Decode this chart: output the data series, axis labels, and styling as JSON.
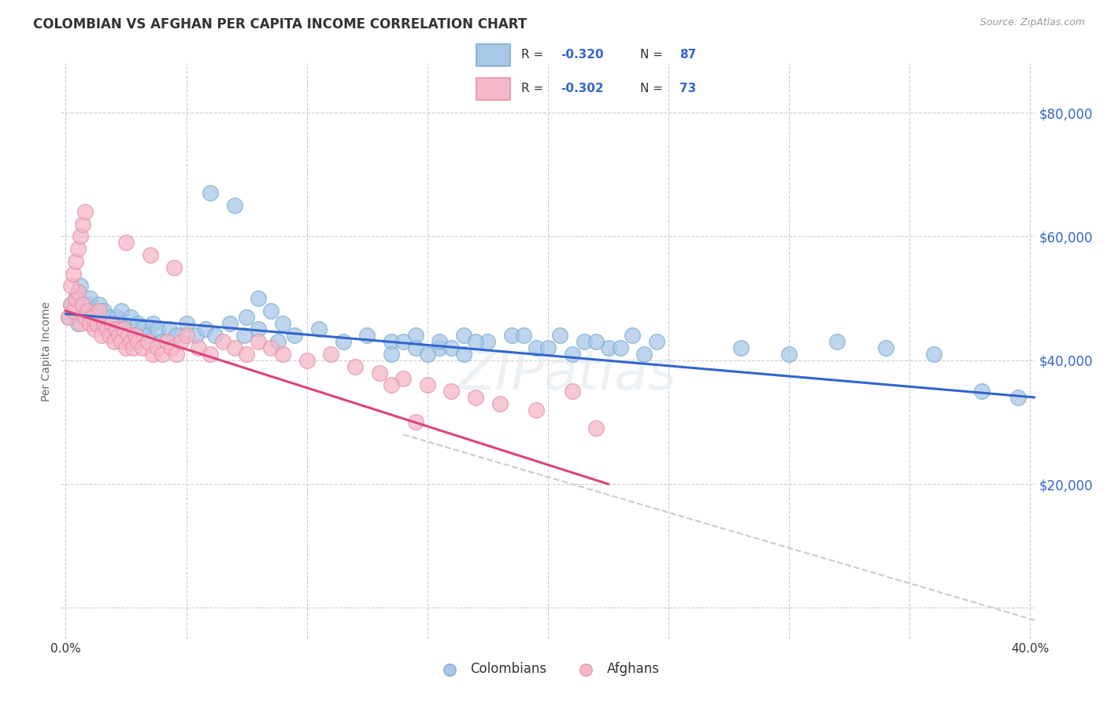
{
  "title": "COLOMBIAN VS AFGHAN PER CAPITA INCOME CORRELATION CHART",
  "source": "Source: ZipAtlas.com",
  "ylabel": "Per Capita Income",
  "watermark": "ZIPatlas",
  "x_ticks": [
    0.0,
    0.05,
    0.1,
    0.15,
    0.2,
    0.25,
    0.3,
    0.35,
    0.4
  ],
  "y_ticks": [
    0,
    20000,
    40000,
    60000,
    80000
  ],
  "xlim": [
    -0.002,
    0.402
  ],
  "ylim": [
    -5000,
    88000
  ],
  "blue_scatter_color": "#a8c8e8",
  "blue_edge_color": "#7aafd4",
  "pink_scatter_color": "#f5b8c8",
  "pink_edge_color": "#e890a8",
  "line_blue": "#3366cc",
  "line_pink": "#dd4477",
  "line_dashed": "#cccccc",
  "background": "#ffffff",
  "grid_color": "#cccccc",
  "title_color": "#333333",
  "right_label_color": "#3366cc",
  "colombian_scatter_x": [
    0.001,
    0.002,
    0.003,
    0.004,
    0.005,
    0.005,
    0.006,
    0.007,
    0.008,
    0.009,
    0.01,
    0.011,
    0.012,
    0.013,
    0.014,
    0.015,
    0.016,
    0.017,
    0.018,
    0.019,
    0.02,
    0.021,
    0.022,
    0.023,
    0.025,
    0.027,
    0.028,
    0.03,
    0.032,
    0.034,
    0.036,
    0.038,
    0.04,
    0.043,
    0.046,
    0.05,
    0.054,
    0.058,
    0.062,
    0.068,
    0.074,
    0.08,
    0.088,
    0.095,
    0.105,
    0.115,
    0.125,
    0.135,
    0.145,
    0.155,
    0.165,
    0.175,
    0.185,
    0.195,
    0.205,
    0.215,
    0.225,
    0.235,
    0.245,
    0.135,
    0.14,
    0.145,
    0.15,
    0.155,
    0.16,
    0.165,
    0.17,
    0.2,
    0.21,
    0.22,
    0.23,
    0.24,
    0.28,
    0.3,
    0.32,
    0.34,
    0.36,
    0.38,
    0.395,
    0.19,
    0.06,
    0.07,
    0.075,
    0.08,
    0.085,
    0.09
  ],
  "colombian_scatter_y": [
    47000,
    49000,
    48000,
    50000,
    51000,
    46000,
    52000,
    48000,
    47000,
    49000,
    50000,
    46000,
    48000,
    47000,
    49000,
    46000,
    48000,
    45000,
    47000,
    46000,
    45000,
    47000,
    46000,
    48000,
    45000,
    47000,
    44000,
    46000,
    45000,
    44000,
    46000,
    45000,
    43000,
    45000,
    44000,
    46000,
    44000,
    45000,
    44000,
    46000,
    44000,
    45000,
    43000,
    44000,
    45000,
    43000,
    44000,
    43000,
    44000,
    42000,
    44000,
    43000,
    44000,
    42000,
    44000,
    43000,
    42000,
    44000,
    43000,
    41000,
    43000,
    42000,
    41000,
    43000,
    42000,
    41000,
    43000,
    42000,
    41000,
    43000,
    42000,
    41000,
    42000,
    41000,
    43000,
    42000,
    41000,
    35000,
    34000,
    44000,
    67000,
    65000,
    47000,
    50000,
    48000,
    46000
  ],
  "afghan_scatter_x": [
    0.001,
    0.002,
    0.003,
    0.004,
    0.005,
    0.006,
    0.007,
    0.008,
    0.009,
    0.01,
    0.011,
    0.012,
    0.013,
    0.014,
    0.015,
    0.016,
    0.017,
    0.018,
    0.019,
    0.02,
    0.021,
    0.022,
    0.023,
    0.024,
    0.025,
    0.026,
    0.027,
    0.028,
    0.029,
    0.03,
    0.032,
    0.034,
    0.036,
    0.038,
    0.04,
    0.042,
    0.044,
    0.046,
    0.048,
    0.05,
    0.055,
    0.06,
    0.065,
    0.07,
    0.075,
    0.08,
    0.085,
    0.09,
    0.1,
    0.11,
    0.12,
    0.13,
    0.14,
    0.15,
    0.16,
    0.002,
    0.003,
    0.004,
    0.005,
    0.006,
    0.007,
    0.008,
    0.17,
    0.18,
    0.195,
    0.21,
    0.22,
    0.025,
    0.035,
    0.045,
    0.135,
    0.145
  ],
  "afghan_scatter_y": [
    47000,
    49000,
    48000,
    50000,
    51000,
    46000,
    49000,
    47000,
    48000,
    46000,
    47000,
    45000,
    46000,
    48000,
    44000,
    46000,
    45000,
    44000,
    46000,
    43000,
    45000,
    44000,
    43000,
    45000,
    42000,
    44000,
    43000,
    42000,
    44000,
    43000,
    42000,
    43000,
    41000,
    42000,
    41000,
    43000,
    42000,
    41000,
    43000,
    44000,
    42000,
    41000,
    43000,
    42000,
    41000,
    43000,
    42000,
    41000,
    40000,
    41000,
    39000,
    38000,
    37000,
    36000,
    35000,
    52000,
    54000,
    56000,
    58000,
    60000,
    62000,
    64000,
    34000,
    33000,
    32000,
    35000,
    29000,
    59000,
    57000,
    55000,
    36000,
    30000
  ],
  "blue_line_x": [
    0.0,
    0.402
  ],
  "blue_line_y": [
    47500,
    34000
  ],
  "pink_line_x": [
    0.0,
    0.225
  ],
  "pink_line_y": [
    48000,
    20000
  ],
  "dashed_line_x": [
    0.14,
    0.402
  ],
  "dashed_line_y": [
    28000,
    -2000
  ]
}
